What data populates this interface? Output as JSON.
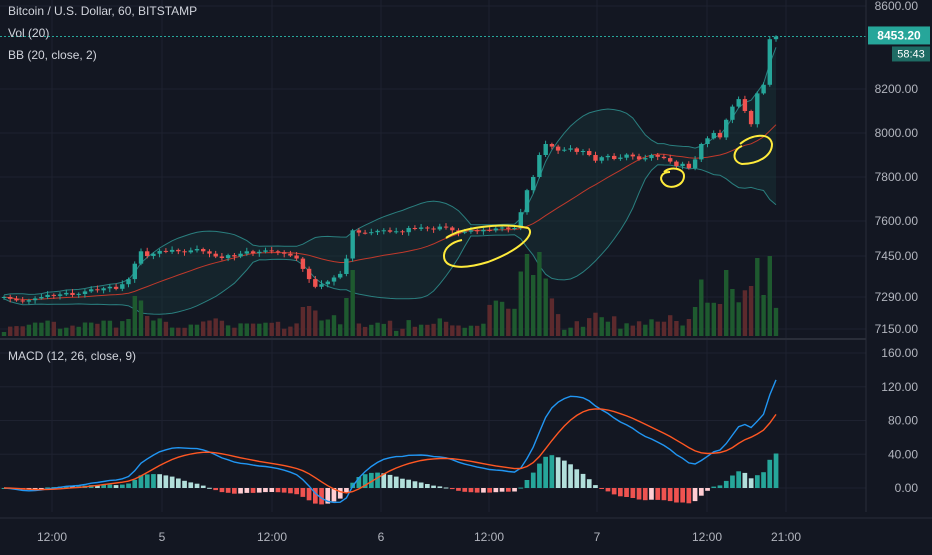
{
  "header": {
    "symbol_line": "Bitcoin / U.S. Dollar, 60, BITSTAMP",
    "vol_label": "Vol (20)",
    "bb_label": "BB (20, close, 2)",
    "macd_label": "MACD (12, 26, close, 9)"
  },
  "price_badge": {
    "value": "8453.20",
    "countdown": "58:43"
  },
  "colors": {
    "background": "#131722",
    "up": "#26a69a",
    "down": "#ef5350",
    "bb_band": "#2a7f7f",
    "bb_basis": "#c0392b",
    "macd_line": "#2196f3",
    "signal_line": "#ff5722",
    "annotation": "#ffeb3b",
    "price_line": "#26a69a"
  },
  "chart_data": [
    {
      "type": "candlestick",
      "title": "Bitcoin / U.S. Dollar, 60, BITSTAMP",
      "y_ticks": [
        "8600.00",
        "8200.00",
        "8000.00",
        "7800.00",
        "7600.00",
        "7450.00",
        "7290.00",
        "7150.00"
      ],
      "x_ticks": [
        "12:00",
        "5",
        "12:00",
        "6",
        "12:00",
        "7",
        "12:00",
        "21:00"
      ],
      "last_price": 8453.2,
      "ohlc_close": [
        7290,
        7282,
        7275,
        7270,
        7276,
        7284,
        7290,
        7298,
        7294,
        7300,
        7306,
        7298,
        7302,
        7312,
        7320,
        7316,
        7324,
        7330,
        7322,
        7340,
        7360,
        7420,
        7470,
        7450,
        7460,
        7472,
        7468,
        7476,
        7470,
        7466,
        7474,
        7480,
        7470,
        7460,
        7448,
        7442,
        7454,
        7448,
        7460,
        7470,
        7462,
        7468,
        7474,
        7470,
        7466,
        7460,
        7452,
        7440,
        7400,
        7360,
        7330,
        7340,
        7350,
        7366,
        7380,
        7440,
        7560,
        7550,
        7548,
        7552,
        7558,
        7560,
        7554,
        7556,
        7552,
        7570,
        7566,
        7572,
        7568,
        7564,
        7576,
        7572,
        7560,
        7550,
        7554,
        7560,
        7556,
        7562,
        7560,
        7568,
        7572,
        7566,
        7570,
        7640,
        7740,
        7800,
        7900,
        7950,
        7938,
        7920,
        7924,
        7930,
        7914,
        7918,
        7900,
        7874,
        7890,
        7896,
        7882,
        7888,
        7902,
        7894,
        7880,
        7886,
        7900,
        7892,
        7886,
        7870,
        7850,
        7860,
        7840,
        7880,
        7950,
        7976,
        8000,
        7980,
        8060,
        8120,
        8154,
        8100,
        8040,
        8180,
        8220,
        8440,
        8453
      ]
    },
    {
      "type": "bar",
      "title": "Vol (20)"
    },
    {
      "type": "line",
      "title": "MACD (12, 26, close, 9)",
      "y_ticks": [
        "160.00",
        "120.00",
        "80.00",
        "40.00",
        "0.00"
      ]
    }
  ]
}
